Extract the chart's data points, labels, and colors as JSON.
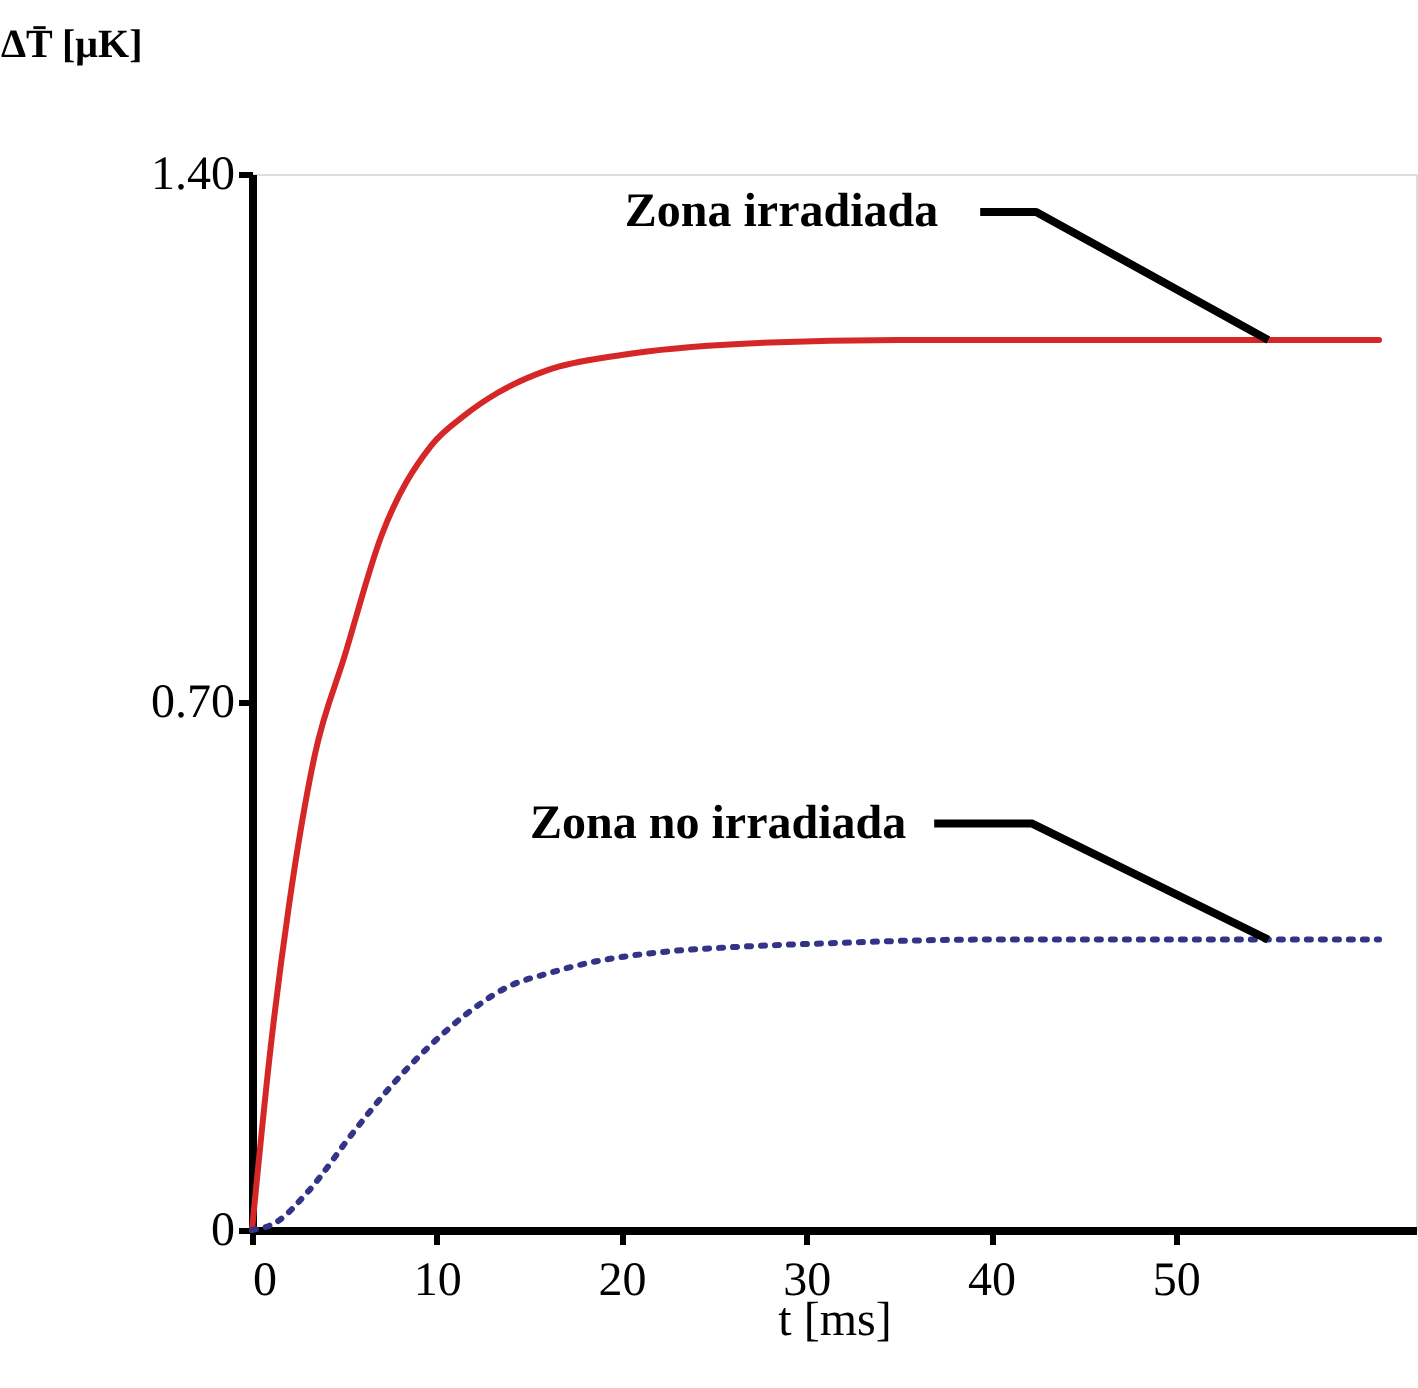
{
  "chart_data": {
    "type": "line",
    "xlabel": "t [ms]",
    "ylabel": "ΔT̄ [μK]",
    "xlim": [
      0,
      63
    ],
    "xticks": [
      0,
      10,
      20,
      30,
      40,
      50
    ],
    "ylim": [
      0,
      1.4
    ],
    "yticks": [
      0,
      {
        "value": 0.7,
        "label": "0.70"
      },
      {
        "value": 1.4,
        "label": "1.40"
      }
    ],
    "grid": false,
    "series": [
      {
        "color": "#d62728",
        "line_style": "solid",
        "x": [
          0,
          1,
          2,
          3.4,
          5,
          7,
          9.7,
          11.5,
          13.3,
          16,
          20,
          26.6,
          35,
          45,
          55,
          61
        ],
        "values": [
          0,
          0.24,
          0.43,
          0.63,
          0.76,
          0.92,
          1.04,
          1.08,
          1.11,
          1.14,
          1.16,
          1.175,
          1.18,
          1.18,
          1.18,
          1.18
        ]
      },
      {
        "color": "#333388",
        "line_style": "dotted",
        "x": [
          0,
          1.3,
          3,
          5.5,
          7.5,
          9.7,
          11.8,
          13.9,
          16,
          18.2,
          22.4,
          26,
          31,
          39.5,
          47,
          55,
          61
        ],
        "values": [
          0,
          0.01,
          0.05,
          0.13,
          0.19,
          0.246,
          0.29,
          0.323,
          0.34,
          0.354,
          0.369,
          0.375,
          0.38,
          0.385,
          0.385,
          0.385,
          0.385
        ]
      }
    ],
    "annotations": [
      {
        "text": "Zona irradiada",
        "x": 55,
        "y": 1.18
      },
      {
        "text": "Zona no irradiada",
        "x": 55,
        "y": 0.385
      }
    ]
  }
}
